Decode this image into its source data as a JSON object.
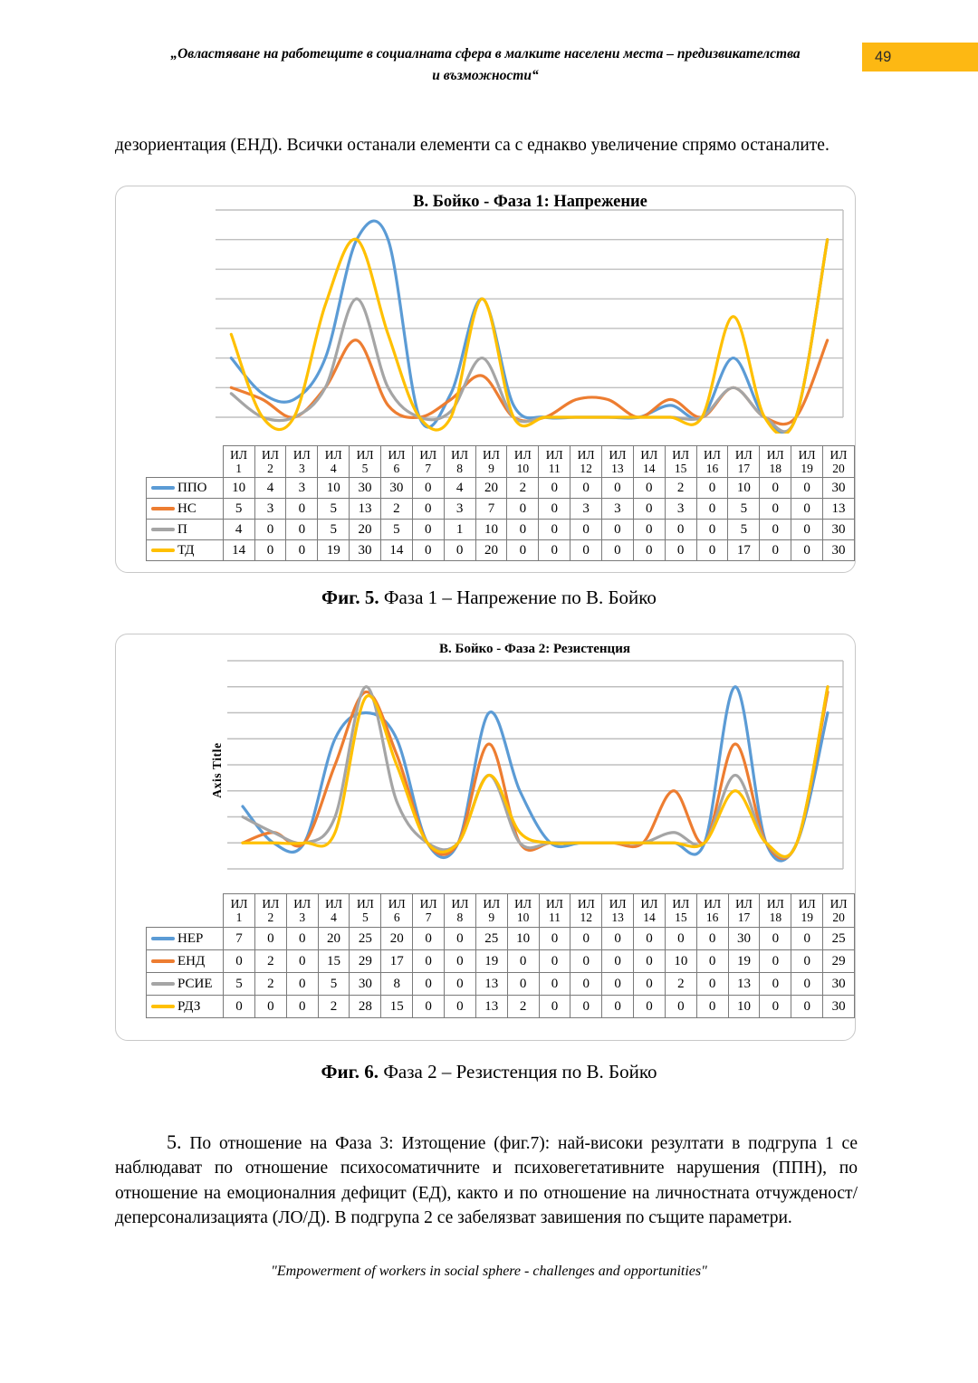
{
  "page": {
    "header_line1": "„Овластяване на работещите в социалната сфера в малките населени места – предизвикателства",
    "header_line2": "и възможности“",
    "page_number": "49",
    "paragraph1": "дезориентация (ЕНД). Всички останали елементи са с еднакво увеличение спрямо останалите.",
    "paragraph2_lead": "5.",
    "paragraph2_rest": " По отношение на Фаза 3: Изтощение (фиг.7): най-високи резултати в подгрупа 1 се наблюдават по отношение психосоматичните и психовегетативните нарушения (ППН), по отношение на емоционалния дефицит (ЕД), както и по отношение на личностната отчужденост/ деперсонализацията (ЛО/Д). В подгрупа 2 се забелязват завишения по същите параметри.",
    "footer": "\"Empowerment of workers in social sphere - challenges and opportunities\""
  },
  "fig5": {
    "caption_bold": "Фиг. 5.",
    "caption_rest": " Фаза 1 – Напрежение по В. Бойко"
  },
  "fig6": {
    "caption_bold": "Фиг. 6.",
    "caption_rest": " Фаза 2 – Резистенция по В. Бойко"
  },
  "colors": {
    "page_number_bg": "#FDB813",
    "series_blue": "#5B9BD5",
    "series_orange": "#ED7D31",
    "series_gray": "#A5A5A5",
    "series_yellow": "#FFC000",
    "gridline": "#bfbfbf",
    "table_border": "#7a7a7a",
    "box_border": "#c8c8c8"
  },
  "chart_data": [
    {
      "type": "line",
      "smooth": true,
      "title": "В. Бойко - Фаза 1: Напрежение",
      "ylabel": "",
      "categories": [
        "ИЛ 1",
        "ИЛ 2",
        "ИЛ 3",
        "ИЛ 4",
        "ИЛ 5",
        "ИЛ 6",
        "ИЛ 7",
        "ИЛ 8",
        "ИЛ 9",
        "ИЛ 10",
        "ИЛ 11",
        "ИЛ 12",
        "ИЛ 13",
        "ИЛ 14",
        "ИЛ 15",
        "ИЛ 16",
        "ИЛ 17",
        "ИЛ 18",
        "ИЛ 19",
        "ИЛ 20"
      ],
      "ymin": 0,
      "ymax": 35,
      "grid_step": 5,
      "grid_on": true,
      "grid_color": "#bfbfbf",
      "legend_position": "table-below",
      "series": [
        {
          "name": "ППО",
          "color": "#5B9BD5",
          "values": [
            10,
            4,
            3,
            10,
            30,
            30,
            0,
            4,
            20,
            2,
            0,
            0,
            0,
            0,
            2,
            0,
            10,
            0,
            0,
            30
          ]
        },
        {
          "name": "НС",
          "color": "#ED7D31",
          "values": [
            5,
            3,
            0,
            5,
            13,
            2,
            0,
            3,
            7,
            0,
            0,
            3,
            3,
            0,
            3,
            0,
            5,
            0,
            0,
            13
          ]
        },
        {
          "name": "П",
          "color": "#A5A5A5",
          "values": [
            4,
            0,
            0,
            5,
            20,
            5,
            0,
            1,
            10,
            0,
            0,
            0,
            0,
            0,
            0,
            0,
            5,
            0,
            0,
            30
          ]
        },
        {
          "name": "ТД",
          "color": "#FFC000",
          "values": [
            14,
            0,
            0,
            19,
            30,
            14,
            0,
            0,
            20,
            0,
            0,
            0,
            0,
            0,
            0,
            0,
            17,
            0,
            0,
            30
          ]
        }
      ]
    },
    {
      "type": "line",
      "smooth": true,
      "title": "В. Бойко - Фаза 2: Резистенция",
      "ylabel": "Axis Title",
      "categories": [
        "ИЛ 1",
        "ИЛ 2",
        "ИЛ 3",
        "ИЛ 4",
        "ИЛ 5",
        "ИЛ 6",
        "ИЛ 7",
        "ИЛ 8",
        "ИЛ 9",
        "ИЛ 10",
        "ИЛ 11",
        "ИЛ 12",
        "ИЛ 13",
        "ИЛ 14",
        "ИЛ 15",
        "ИЛ 16",
        "ИЛ 17",
        "ИЛ 18",
        "ИЛ 19",
        "ИЛ 20"
      ],
      "ymin": -5,
      "ymax": 35,
      "grid_step": 5,
      "grid_on": true,
      "grid_color": "#bfbfbf",
      "legend_position": "table-below",
      "series": [
        {
          "name": "НЕР",
          "color": "#5B9BD5",
          "values": [
            7,
            0,
            0,
            20,
            25,
            20,
            0,
            0,
            25,
            10,
            0,
            0,
            0,
            0,
            0,
            0,
            30,
            0,
            0,
            25
          ]
        },
        {
          "name": "ЕНД",
          "color": "#ED7D31",
          "values": [
            0,
            2,
            0,
            15,
            29,
            17,
            0,
            0,
            19,
            0,
            0,
            0,
            0,
            0,
            10,
            0,
            19,
            0,
            0,
            29
          ]
        },
        {
          "name": "РСИЕ",
          "color": "#A5A5A5",
          "values": [
            5,
            2,
            0,
            5,
            30,
            8,
            0,
            0,
            13,
            0,
            0,
            0,
            0,
            0,
            2,
            0,
            13,
            0,
            0,
            30
          ]
        },
        {
          "name": "РДЗ",
          "color": "#FFC000",
          "values": [
            0,
            0,
            0,
            2,
            28,
            15,
            0,
            0,
            13,
            2,
            0,
            0,
            0,
            0,
            0,
            0,
            10,
            0,
            0,
            30
          ]
        }
      ]
    }
  ]
}
